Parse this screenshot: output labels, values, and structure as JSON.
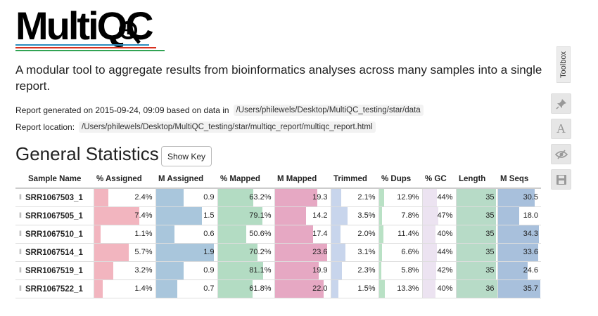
{
  "logo": {
    "text": "MultiQC"
  },
  "intro": {
    "lead": "A modular tool to aggregate results from bioinformatics analyses across many samples into a single report."
  },
  "report": {
    "generated_prefix": "Report generated on 2015-09-24, 09:09 based on data in",
    "data_path": "/Users/philewels/Desktop/MultiQC_testing/star/data",
    "location_prefix": "Report location:",
    "report_path": "/Users/philewels/Desktop/MultiQC_testing/star/multiqc_report/multiqc_report.html"
  },
  "general_stats": {
    "title": "General Statistics",
    "show_key_label": "Show Key",
    "columns": [
      {
        "key": "name",
        "label": "Sample Name"
      },
      {
        "key": "pct_assigned",
        "label": "% Assigned",
        "max": 10,
        "color": "#f2b5bf"
      },
      {
        "key": "m_assigned",
        "label": "M Assigned",
        "max": 2,
        "color": "#a9c6dc"
      },
      {
        "key": "pct_mapped",
        "label": "% Mapped",
        "max": 100,
        "color": "#b3dcc3"
      },
      {
        "key": "m_mapped",
        "label": "M Mapped",
        "max": 25,
        "color": "#e6a8c3"
      },
      {
        "key": "trimmed",
        "label": "Trimmed",
        "max": 10,
        "color": "#c8d5ec"
      },
      {
        "key": "pct_dups",
        "label": "% Dups",
        "max": 100,
        "color": "#b9e1c5"
      },
      {
        "key": "pct_gc",
        "label": "% GC",
        "max": 100,
        "color": "#ece3f1"
      },
      {
        "key": "length",
        "label": "Length",
        "max": 36,
        "color": "#b7dbc7"
      },
      {
        "key": "m_seqs",
        "label": "M Seqs",
        "max": 36,
        "color": "#a8c0dc"
      }
    ],
    "rows": [
      {
        "name": "SRR1067503_1",
        "values": [
          "2.4%",
          "0.9",
          "63.2%",
          "19.3",
          "2.1%",
          "12.9%",
          "44%",
          "35",
          "30.5"
        ],
        "levels": [
          2.4,
          0.9,
          63.2,
          19.3,
          2.1,
          12.9,
          44,
          35,
          30.5
        ]
      },
      {
        "name": "SRR1067505_1",
        "values": [
          "7.4%",
          "1.5",
          "79.1%",
          "14.2",
          "3.5%",
          "7.8%",
          "47%",
          "35",
          "18.0"
        ],
        "levels": [
          7.4,
          1.5,
          79.1,
          14.2,
          3.5,
          7.8,
          47,
          35,
          18.0
        ]
      },
      {
        "name": "SRR1067510_1",
        "values": [
          "1.1%",
          "0.6",
          "50.6%",
          "17.4",
          "2.0%",
          "11.4%",
          "40%",
          "35",
          "34.3"
        ],
        "levels": [
          1.1,
          0.6,
          50.6,
          17.4,
          2.0,
          11.4,
          40,
          35,
          34.3
        ]
      },
      {
        "name": "SRR1067514_1",
        "values": [
          "5.7%",
          "1.9",
          "70.2%",
          "23.6",
          "3.1%",
          "6.6%",
          "44%",
          "35",
          "33.6"
        ],
        "levels": [
          5.7,
          1.9,
          70.2,
          23.6,
          3.1,
          6.6,
          44,
          35,
          33.6
        ]
      },
      {
        "name": "SRR1067519_1",
        "values": [
          "3.2%",
          "0.9",
          "81.1%",
          "19.9",
          "2.3%",
          "5.8%",
          "42%",
          "35",
          "24.6"
        ],
        "levels": [
          3.2,
          0.9,
          81.1,
          19.9,
          2.3,
          5.8,
          42,
          35,
          24.6
        ]
      },
      {
        "name": "SRR1067522_1",
        "values": [
          "1.4%",
          "0.7",
          "61.8%",
          "22.0",
          "1.5%",
          "13.3%",
          "40%",
          "36",
          "35.7"
        ],
        "levels": [
          1.4,
          0.7,
          61.8,
          22.0,
          1.5,
          13.3,
          40,
          36,
          35.7
        ]
      }
    ]
  },
  "toolbox": {
    "label": "Toolbox",
    "buttons": [
      {
        "icon": "pin-icon"
      },
      {
        "icon": "font-icon",
        "glyph": "A"
      },
      {
        "icon": "eye-hide-icon"
      },
      {
        "icon": "save-icon"
      }
    ]
  }
}
